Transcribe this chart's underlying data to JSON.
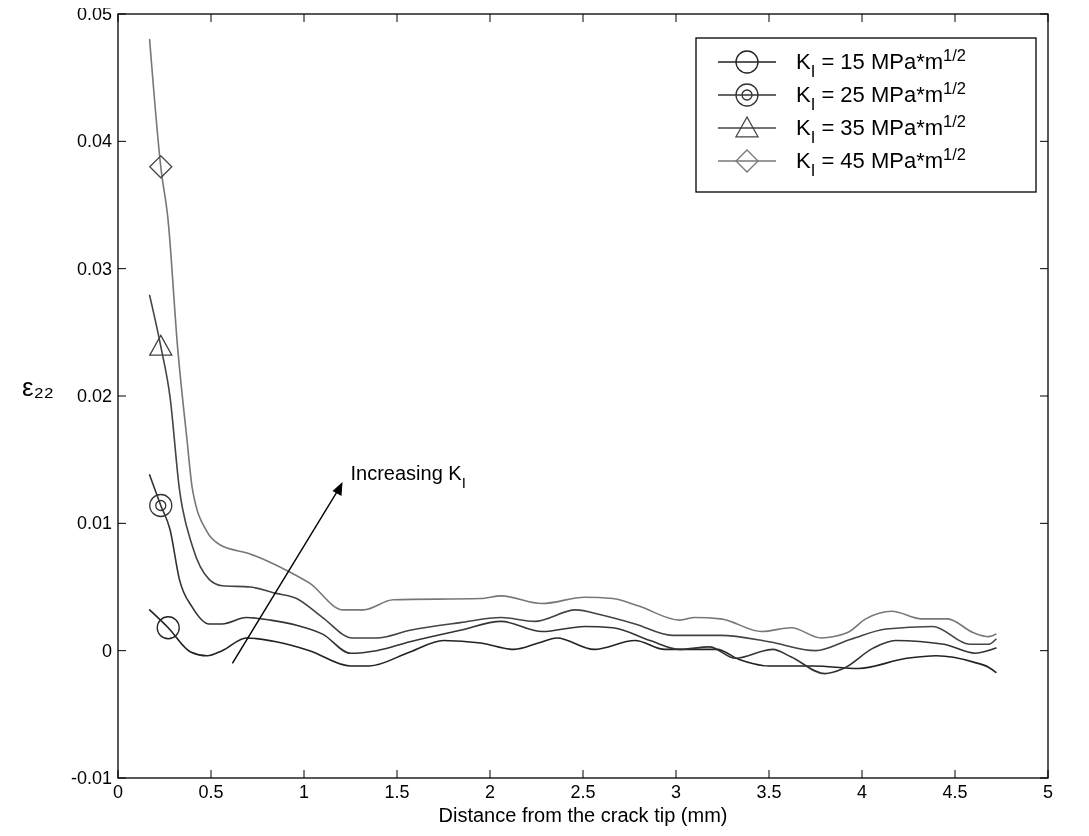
{
  "chart_data": {
    "type": "line",
    "xlabel": "Distance from the crack tip (mm)",
    "ylabel": "ε₂₂",
    "xlim": [
      0,
      5
    ],
    "xticks": [
      0,
      0.5,
      1,
      1.5,
      2,
      2.5,
      3,
      3.5,
      4,
      4.5,
      5
    ],
    "ylim": [
      -0.01,
      0.05
    ],
    "yticks": [
      -0.01,
      0,
      0.01,
      0.02,
      0.03,
      0.04,
      0.05
    ],
    "grid": false,
    "legend": "top right",
    "annotations": [
      "Increasing K$_{I}$"
    ],
    "series": [
      {
        "name": "K$_{I}$ = 15 MPa*m$^{1/2}$",
        "color": "#222222",
        "x": [
          0.17,
          0.27,
          0.39,
          0.48,
          0.56,
          0.69,
          0.85,
          1.03,
          1.25,
          1.35,
          1.57,
          1.75,
          1.95,
          2.13,
          2.26,
          2.36,
          2.56,
          2.78,
          2.94,
          3.22,
          3.34,
          3.5,
          3.74,
          3.98,
          4.24,
          4.4,
          4.6,
          4.68,
          4.72
        ],
        "values": [
          0.0032,
          0.0018,
          -0.0001,
          -0.0004,
          0,
          0.001,
          0.0007,
          0,
          -0.0012,
          -0.0012,
          -0.0001,
          0.0008,
          0.0006,
          0.0001,
          0.0006,
          0.001,
          0.0001,
          0.0008,
          0.0001,
          0.0001,
          -0.0007,
          -0.0012,
          -0.0012,
          -0.0014,
          -0.0006,
          -0.0004,
          -0.0009,
          -0.0013,
          -0.0017
        ]
      },
      {
        "name": "K$_{I}$ = 25 MPa*m$^{1/2}$",
        "color": "#333333",
        "x": [
          0.17,
          0.23,
          0.28,
          0.33,
          0.4,
          0.49,
          0.56,
          0.69,
          0.82,
          0.96,
          1.1,
          1.25,
          1.39,
          1.57,
          1.84,
          2.06,
          2.28,
          2.51,
          2.66,
          2.86,
          3.02,
          3.18,
          3.32,
          3.52,
          3.62,
          3.8,
          3.9,
          4.06,
          4.18,
          4.44,
          4.61,
          4.72
        ],
        "values": [
          0.0138,
          0.0114,
          0.0095,
          0.0056,
          0.0034,
          0.0021,
          0.0021,
          0.0026,
          0.0024,
          0.002,
          0.0013,
          -0.0002,
          0,
          0.0007,
          0.0016,
          0.0023,
          0.0015,
          0.0019,
          0.0018,
          0.0008,
          0.0001,
          0.0003,
          -0.0006,
          0.0001,
          -0.0005,
          -0.0018,
          -0.0014,
          0.0002,
          0.0008,
          0.0005,
          -0.0002,
          0.0002
        ]
      },
      {
        "name": "K$_{I}$ = 35 MPa*m$^{1/2}$",
        "color": "#444444",
        "x": [
          0.17,
          0.23,
          0.28,
          0.33,
          0.4,
          0.49,
          0.56,
          0.71,
          0.85,
          0.96,
          1.1,
          1.26,
          1.39,
          1.57,
          1.84,
          2.06,
          2.24,
          2.46,
          2.6,
          2.78,
          2.98,
          3.24,
          3.5,
          3.75,
          3.94,
          4.13,
          4.38,
          4.58,
          4.68,
          4.72
        ],
        "values": [
          0.0279,
          0.0239,
          0.0199,
          0.0127,
          0.0082,
          0.0056,
          0.0051,
          0.005,
          0.0045,
          0.0041,
          0.0026,
          0.001,
          0.001,
          0.0016,
          0.0022,
          0.0026,
          0.0023,
          0.0032,
          0.0028,
          0.0021,
          0.0012,
          0.0012,
          0.0007,
          0,
          0.0009,
          0.0017,
          0.0019,
          0.0005,
          0.0005,
          0.0009
        ]
      },
      {
        "name": "K$_{I}$ = 45 MPa*m$^{1/2}$",
        "color": "#777777",
        "x": [
          0.17,
          0.23,
          0.27,
          0.32,
          0.37,
          0.4,
          0.48,
          0.55,
          0.71,
          0.92,
          1.03,
          1.21,
          1.32,
          1.48,
          1.95,
          2.06,
          2.28,
          2.51,
          2.66,
          2.8,
          3.02,
          3.1,
          3.24,
          3.46,
          3.62,
          3.78,
          3.92,
          4.02,
          4.16,
          4.32,
          4.46,
          4.6,
          4.68,
          4.72
        ],
        "values": [
          0.048,
          0.038,
          0.0337,
          0.0239,
          0.0167,
          0.0127,
          0.0093,
          0.0083,
          0.0076,
          0.0062,
          0.0053,
          0.0032,
          0.0032,
          0.004,
          0.0041,
          0.0043,
          0.0037,
          0.0042,
          0.0041,
          0.0035,
          0.0024,
          0.0026,
          0.0025,
          0.0015,
          0.0018,
          0.001,
          0.0014,
          0.0025,
          0.0031,
          0.0025,
          0.0025,
          0.0014,
          0.0011,
          0.0013
        ]
      },
      {
        "type": "scatter",
        "color": "#222222",
        "marker": "circle",
        "x": [
          0.27
        ],
        "values": [
          0.0018
        ]
      },
      {
        "type": "scatter",
        "color": "#333333",
        "marker": "circle-dot",
        "x": [
          0.23
        ],
        "values": [
          0.0114
        ]
      },
      {
        "type": "scatter",
        "color": "#444444",
        "marker": "triangle",
        "x": [
          0.23
        ],
        "values": [
          0.0239
        ]
      },
      {
        "type": "scatter",
        "color": "#444444",
        "marker": "diamond",
        "x": [
          0.23
        ],
        "values": [
          0.038
        ]
      }
    ]
  }
}
